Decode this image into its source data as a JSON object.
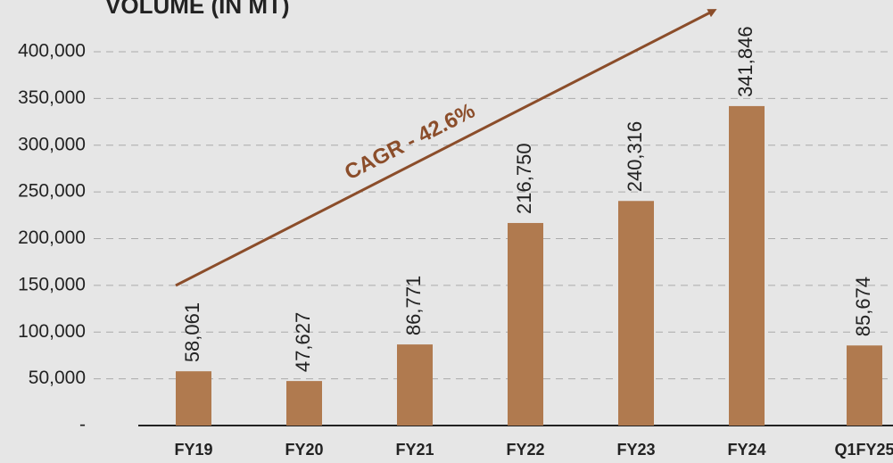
{
  "chart_data": {
    "type": "bar",
    "title": "VOLUME (IN MT)",
    "annotation": "CAGR - 42.6%",
    "categories": [
      "FY19",
      "FY20",
      "FY21",
      "FY22",
      "FY23",
      "FY24",
      "Q1FY25"
    ],
    "values": [
      58061,
      47627,
      86771,
      216750,
      240316,
      341846,
      85674
    ],
    "value_labels": [
      "58,061",
      "47,627",
      "86,771",
      "216,750",
      "240,316",
      "341,846",
      "85,674"
    ],
    "color": "#b07a4f",
    "ylim": [
      0,
      400000
    ],
    "yticks": [
      {
        "value": 0,
        "label": "-"
      },
      {
        "value": 50000,
        "label": "50,000"
      },
      {
        "value": 100000,
        "label": "100,000"
      },
      {
        "value": 150000,
        "label": "150,000"
      },
      {
        "value": 200000,
        "label": "200,000"
      },
      {
        "value": 250000,
        "label": "250,000"
      },
      {
        "value": 300000,
        "label": "300,000"
      },
      {
        "value": 350000,
        "label": "350,000"
      },
      {
        "value": 400000,
        "label": "400,000"
      }
    ],
    "grid": true
  }
}
